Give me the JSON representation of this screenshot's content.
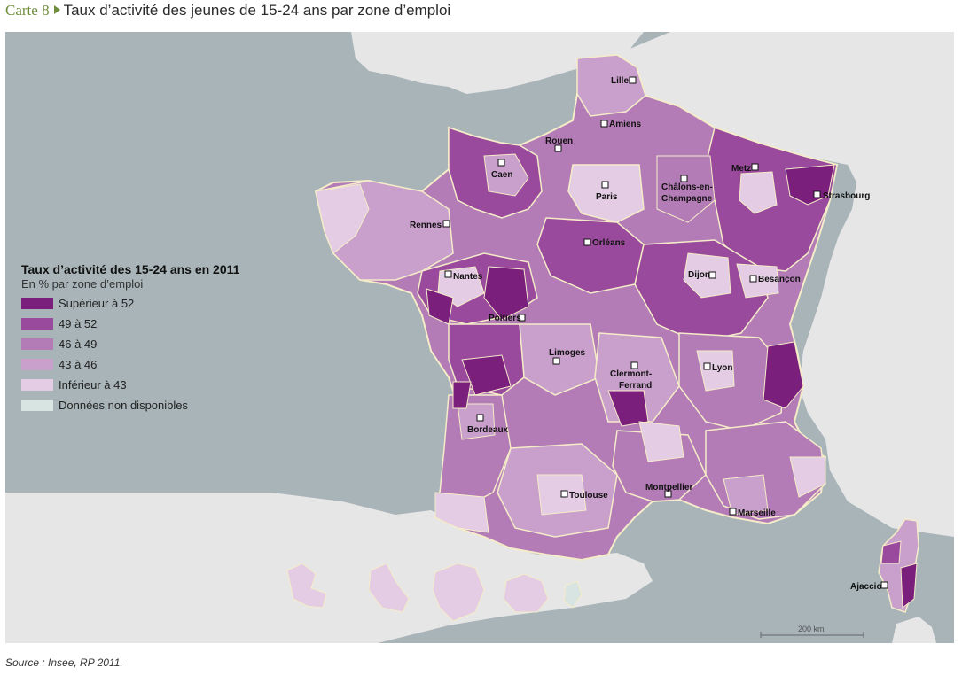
{
  "header": {
    "label": "Carte 8",
    "title": "Taux d’activité des jeunes de 15-24 ans par zone d’emploi"
  },
  "legend": {
    "title": "Taux d’activité des 15-24 ans en 2011",
    "subtitle": "En % par zone d’emploi",
    "items": [
      {
        "label": "Supérieur à 52",
        "color": "#7b1f7d"
      },
      {
        "label": "49 à 52",
        "color": "#9a4a9c"
      },
      {
        "label": "46 à 49",
        "color": "#b47cb6"
      },
      {
        "label": "43 à 46",
        "color": "#c99fcb"
      },
      {
        "label": "Inférieur à 43",
        "color": "#e3cce4"
      },
      {
        "label": "Données non disponibles",
        "color": "#d8e4e2"
      }
    ]
  },
  "cities": [
    {
      "name": "Lille"
    },
    {
      "name": "Amiens"
    },
    {
      "name": "Rouen"
    },
    {
      "name": "Caen"
    },
    {
      "name": "Metz"
    },
    {
      "name": "Strasbourg"
    },
    {
      "name": "Châlons-en-"
    },
    {
      "name": "Champagne"
    },
    {
      "name": "Paris"
    },
    {
      "name": "Rennes"
    },
    {
      "name": "Orléans"
    },
    {
      "name": "Nantes"
    },
    {
      "name": "Dijon"
    },
    {
      "name": "Besançon"
    },
    {
      "name": "Poitiers"
    },
    {
      "name": "Limoges"
    },
    {
      "name": "Clermont-"
    },
    {
      "name": "Ferrand"
    },
    {
      "name": "Lyon"
    },
    {
      "name": "Bordeaux"
    },
    {
      "name": "Toulouse"
    },
    {
      "name": "Montpellier"
    },
    {
      "name": "Marseille"
    },
    {
      "name": "Ajaccio"
    }
  ],
  "scale": {
    "label": "200 km"
  },
  "source": "Source : Insee, RP 2011.",
  "colors": {
    "sea": "#a8b4b8",
    "neighbors": "#e6e6e6",
    "borders": "#f4ecc9"
  }
}
